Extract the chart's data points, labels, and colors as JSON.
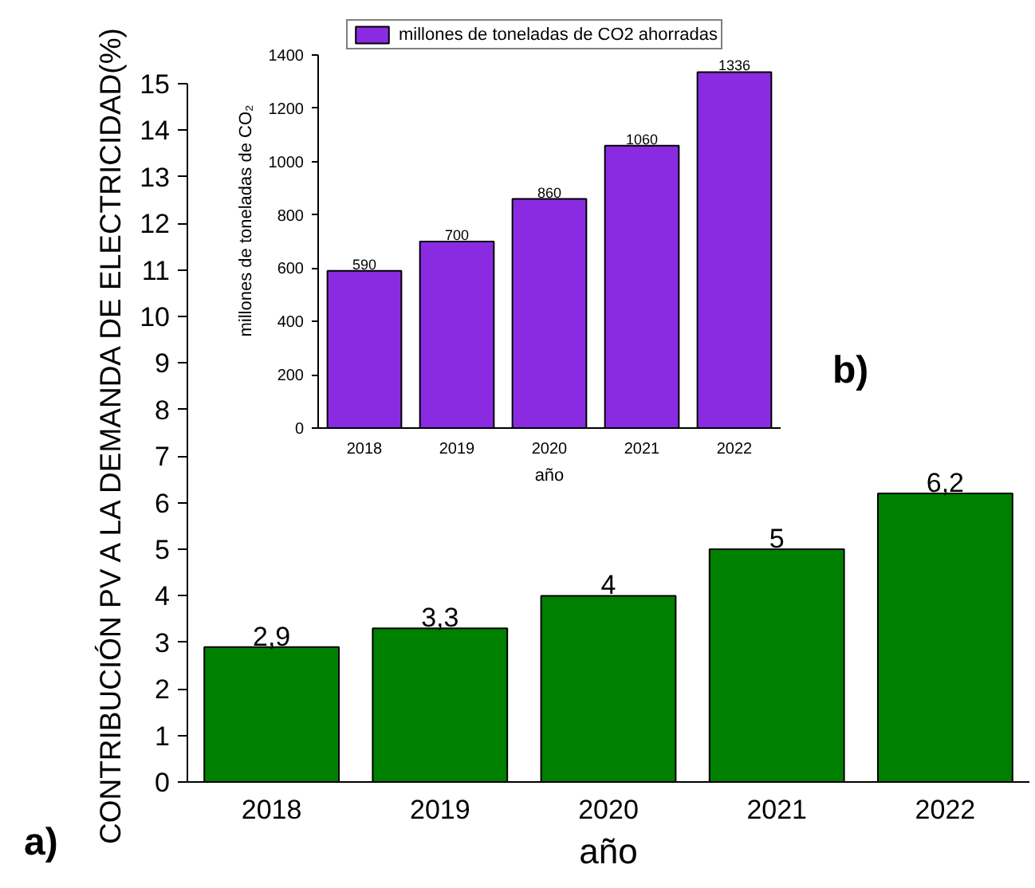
{
  "chart_data": [
    {
      "type": "bar",
      "categories": [
        "2018",
        "2019",
        "2020",
        "2021",
        "2022"
      ],
      "values": [
        2.9,
        3.3,
        4,
        5,
        6.2
      ],
      "color": "#008000",
      "value_labels": [
        "2,9",
        "3,3",
        "4",
        "5",
        "6,2"
      ],
      "xlabel": "año",
      "ylabel": "CONTRIBUCIÓN PV A LA DEMANDA DE ELECTRICIDAD(%)",
      "ylim": [
        0,
        15
      ],
      "yticks": [
        0,
        1,
        2,
        3,
        4,
        5,
        6,
        7,
        8,
        9,
        10,
        11,
        12,
        13,
        14,
        15
      ],
      "annotations": [
        "a)"
      ]
    },
    {
      "type": "bar",
      "categories": [
        "2018",
        "2019",
        "2020",
        "2021",
        "2022"
      ],
      "series": [
        {
          "name": "millones de toneladas de CO2 ahorradas",
          "color": "#8a2be2",
          "values": [
            590,
            700,
            860,
            1060,
            1336
          ]
        }
      ],
      "xlabel": "año",
      "ylabel": "millones de toneladas de CO₂",
      "ylim": [
        0,
        1400
      ],
      "yticks": [
        0,
        200,
        400,
        600,
        800,
        1000,
        1200,
        1400
      ],
      "data_labels": true,
      "legend": "top",
      "annotations": [
        "b)"
      ]
    }
  ]
}
